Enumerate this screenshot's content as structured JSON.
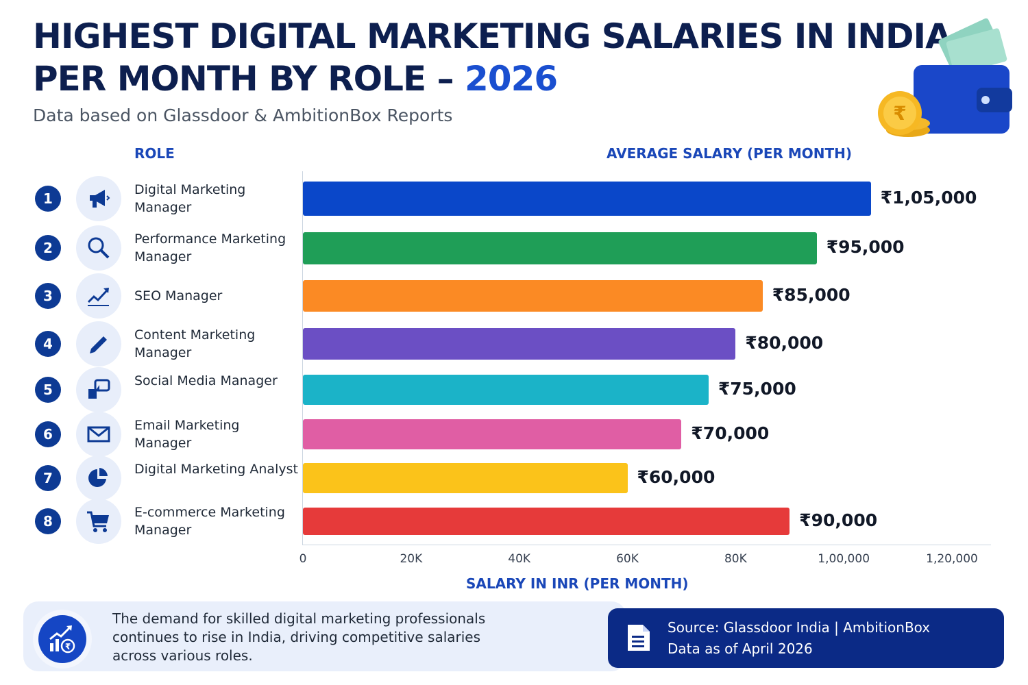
{
  "header": {
    "title_line1": "HIGHEST DIGITAL MARKETING SALARIES IN INDIA",
    "title_line2": "PER MONTH BY ROLE – ",
    "title_year": "2026",
    "subtitle": "Data based on Glassdoor & AmbitionBox Reports"
  },
  "columns": {
    "role": "ROLE",
    "salary": "AVERAGE SALARY (PER MONTH)"
  },
  "chart_data": {
    "type": "bar",
    "orientation": "horizontal",
    "categories": [
      "Digital Marketing Manager",
      "Performance Marketing Manager",
      "SEO Manager",
      "Content Marketing Manager",
      "Social Media Manager",
      "Email Marketing Manager",
      "Digital Marketing Analyst",
      "E-commerce Marketing Manager"
    ],
    "values": [
      105000,
      95000,
      85000,
      80000,
      75000,
      70000,
      60000,
      90000
    ],
    "value_labels": [
      "₹1,05,000",
      "₹95,000",
      "₹85,000",
      "₹80,000",
      "₹75,000",
      "₹70,000",
      "₹60,000",
      "₹90,000"
    ],
    "colors": [
      "#0a47c9",
      "#1f9e57",
      "#fb8a24",
      "#6b4fc4",
      "#1bb3c8",
      "#e05ea4",
      "#fbc31a",
      "#e63a3a"
    ],
    "icons": [
      "megaphone-icon",
      "search-icon",
      "trend-up-icon",
      "pencil-icon",
      "social-chat-icon",
      "mail-icon",
      "pie-chart-icon",
      "cart-icon"
    ],
    "xticks": [
      0,
      20000,
      40000,
      60000,
      80000,
      100000,
      120000
    ],
    "xtick_labels": [
      "0",
      "20K",
      "40K",
      "60K",
      "80K",
      "1,00,000",
      "1,20,000"
    ],
    "xlim": [
      0,
      120000
    ],
    "xlabel": "SALARY IN INR (PER MONTH)"
  },
  "footer": {
    "note": "The demand for skilled digital marketing professionals continues to rise in India, driving competitive salaries across various roles.",
    "source_line1": "Source: Glassdoor India | AmbitionBox",
    "source_line2": "Data as of April 2026"
  }
}
